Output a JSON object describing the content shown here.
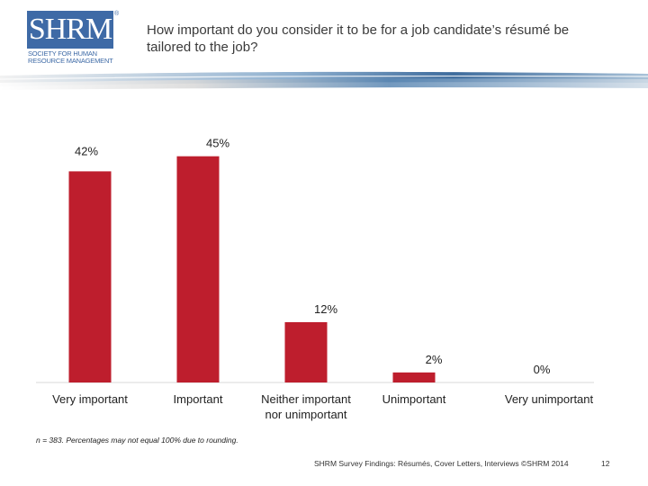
{
  "logo": {
    "main": "SHRM",
    "registered": "®",
    "subtitle": "Society for Human Resource Management"
  },
  "question": "How important do you consider it to be for a job candidate’s résumé be tailored to the job?",
  "footnote": "n = 383. Percentages may not equal 100% due to rounding.",
  "footer": {
    "source": "SHRM Survey Findings: Résumés, Cover Letters, Interviews ©SHRM 2014",
    "page": "12"
  },
  "colors": {
    "bar": "#be1e2d",
    "brand": "#3e6aa6"
  },
  "chart_data": {
    "type": "bar",
    "title": "",
    "xlabel": "",
    "ylabel": "",
    "categories": [
      [
        "Very important"
      ],
      [
        "Important"
      ],
      [
        "Neither important",
        "nor unimportant"
      ],
      [
        "Unimportant"
      ],
      [
        "Very unimportant"
      ]
    ],
    "values": [
      42,
      45,
      12,
      2,
      0
    ],
    "value_labels": [
      "42%",
      "45%",
      "12%",
      "2%",
      "0%"
    ],
    "ylim": [
      0,
      50
    ],
    "grid": false,
    "legend": "none"
  }
}
